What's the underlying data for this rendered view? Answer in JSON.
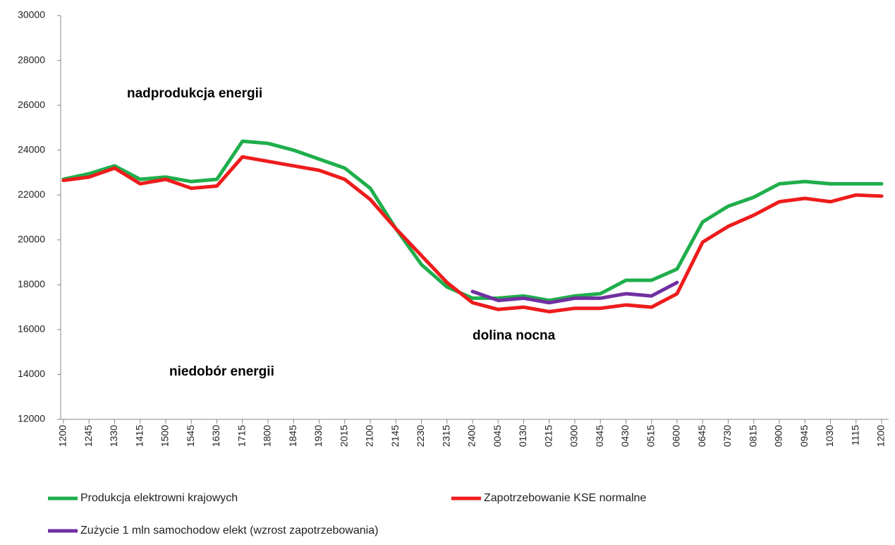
{
  "chart_data": {
    "type": "line",
    "categories": [
      "1200",
      "1245",
      "1330",
      "1415",
      "1500",
      "1545",
      "1630",
      "1715",
      "1800",
      "1845",
      "1930",
      "2015",
      "2100",
      "2145",
      "2230",
      "2315",
      "2400",
      "0045",
      "0130",
      "0215",
      "0300",
      "0345",
      "0430",
      "0515",
      "0600",
      "0645",
      "0730",
      "0815",
      "0900",
      "0945",
      "1030",
      "1115",
      "1200"
    ],
    "series": [
      {
        "name": "Produkcja elektrowni krajowych",
        "color": "#1fae4b",
        "values": [
          22700,
          22950,
          23300,
          22700,
          22800,
          22600,
          22700,
          24400,
          24300,
          24000,
          23600,
          23200,
          22300,
          20500,
          18900,
          17900,
          17400,
          17400,
          17500,
          17300,
          17500,
          17600,
          18200,
          18200,
          18700,
          20800,
          21500,
          21900,
          22500,
          22600,
          22500,
          22500,
          22500
        ]
      },
      {
        "name": "Zapotrzebowanie KSE normalne",
        "color": "#ee1c1c",
        "values": [
          22650,
          22800,
          23200,
          22500,
          22700,
          22300,
          22400,
          23700,
          23500,
          23300,
          23100,
          22700,
          21800,
          20500,
          19300,
          18100,
          17200,
          16900,
          17000,
          16800,
          16950,
          16950,
          17100,
          17000,
          17600,
          19900,
          20600,
          21100,
          21700,
          21850,
          21700,
          22000,
          21950
        ]
      },
      {
        "name": "Zużycie 1 mln samochodow elekt (wzrost zapotrzebowania)",
        "color": "#7030a0",
        "values": [
          null,
          null,
          null,
          null,
          null,
          null,
          null,
          null,
          null,
          null,
          null,
          null,
          null,
          null,
          null,
          null,
          17700,
          17300,
          17400,
          17200,
          17400,
          17400,
          17600,
          17500,
          18100,
          null,
          null,
          null,
          null,
          null,
          null,
          null,
          null
        ]
      }
    ],
    "annotations": [
      "nadprodukcja energii",
      "dolina nocna",
      "niedobór energii"
    ],
    "ylim": [
      12000,
      30000
    ],
    "yticks": [
      12000,
      14000,
      16000,
      18000,
      20000,
      22000,
      24000,
      26000,
      28000,
      30000
    ],
    "grid": false
  }
}
